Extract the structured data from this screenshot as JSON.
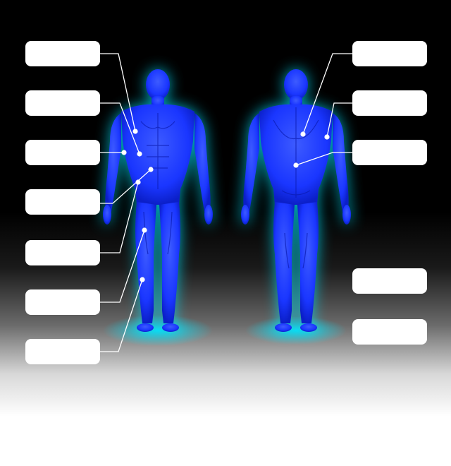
{
  "diagram": {
    "left_labels": [
      "",
      "",
      "",
      "",
      "",
      "",
      ""
    ],
    "right_labels": [
      "",
      "",
      "",
      "",
      ""
    ]
  },
  "colors": {
    "body_core": "#1a36ff",
    "body_edge": "#0a1ad0",
    "glow": "#00e5ff",
    "line": "#ffffff",
    "box": "#ffffff"
  },
  "icons": {
    "pointer_dot": "circle"
  }
}
